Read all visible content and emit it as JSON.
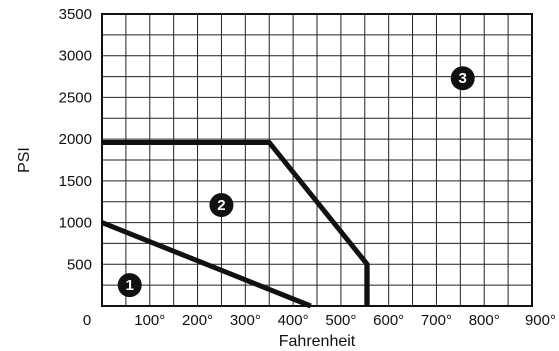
{
  "chart_data": {
    "type": "line",
    "title": "",
    "xlabel": "Fahrenheit",
    "ylabel": "PSI",
    "xlim": [
      0,
      900
    ],
    "ylim": [
      0,
      3500
    ],
    "grid": true,
    "x_ticks": [
      100,
      200,
      300,
      400,
      500,
      600,
      700,
      800,
      900
    ],
    "x_tick_labels": [
      "100°",
      "200°",
      "300°",
      "400°",
      "500°",
      "600°",
      "700°",
      "800°",
      "900°"
    ],
    "x_origin_label": "0",
    "y_ticks": [
      500,
      1000,
      1500,
      2000,
      2500,
      3000,
      3500
    ],
    "y_tick_labels": [
      "500",
      "1000",
      "1500",
      "2000",
      "2500",
      "3000",
      "3500"
    ],
    "series": [
      {
        "x": [
          0,
          437
        ],
        "y": [
          1000,
          0
        ]
      },
      {
        "x": [
          0,
          350,
          555,
          555
        ],
        "y": [
          1960,
          1960,
          500,
          0
        ]
      }
    ],
    "annotations": [
      {
        "label": "1",
        "x": 58,
        "y": 250
      },
      {
        "label": "2",
        "x": 250,
        "y": 1210
      },
      {
        "label": "3",
        "x": 755,
        "y": 2730
      }
    ]
  }
}
